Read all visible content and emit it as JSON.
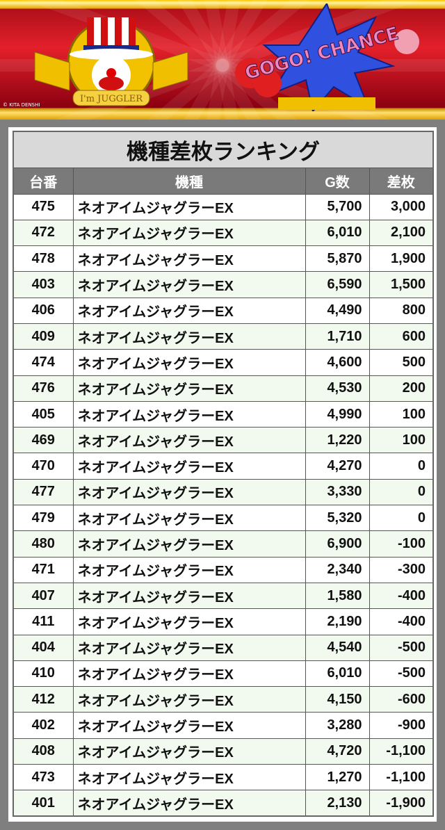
{
  "banner": {
    "copyright": "© KITA DENSHI",
    "logo_left_text": "I'm JUGGLER",
    "logo_right_text": "GOGO! CHANCE",
    "colors": {
      "red": "#e3202a",
      "gold": "#f7c600"
    }
  },
  "table": {
    "title": "機種差枚ランキング",
    "headers": [
      "台番",
      "機種",
      "G数",
      "差枚"
    ],
    "rows": [
      [
        "475",
        "ネオアイムジャグラーEX",
        "5,700",
        "3,000"
      ],
      [
        "472",
        "ネオアイムジャグラーEX",
        "6,010",
        "2,100"
      ],
      [
        "478",
        "ネオアイムジャグラーEX",
        "5,870",
        "1,900"
      ],
      [
        "403",
        "ネオアイムジャグラーEX",
        "6,590",
        "1,500"
      ],
      [
        "406",
        "ネオアイムジャグラーEX",
        "4,490",
        "800"
      ],
      [
        "409",
        "ネオアイムジャグラーEX",
        "1,710",
        "600"
      ],
      [
        "474",
        "ネオアイムジャグラーEX",
        "4,600",
        "500"
      ],
      [
        "476",
        "ネオアイムジャグラーEX",
        "4,530",
        "200"
      ],
      [
        "405",
        "ネオアイムジャグラーEX",
        "4,990",
        "100"
      ],
      [
        "469",
        "ネオアイムジャグラーEX",
        "1,220",
        "100"
      ],
      [
        "470",
        "ネオアイムジャグラーEX",
        "4,270",
        "0"
      ],
      [
        "477",
        "ネオアイムジャグラーEX",
        "3,330",
        "0"
      ],
      [
        "479",
        "ネオアイムジャグラーEX",
        "5,320",
        "0"
      ],
      [
        "480",
        "ネオアイムジャグラーEX",
        "6,900",
        "-100"
      ],
      [
        "471",
        "ネオアイムジャグラーEX",
        "2,340",
        "-300"
      ],
      [
        "407",
        "ネオアイムジャグラーEX",
        "1,580",
        "-400"
      ],
      [
        "411",
        "ネオアイムジャグラーEX",
        "2,190",
        "-400"
      ],
      [
        "404",
        "ネオアイムジャグラーEX",
        "4,540",
        "-500"
      ],
      [
        "410",
        "ネオアイムジャグラーEX",
        "6,010",
        "-500"
      ],
      [
        "412",
        "ネオアイムジャグラーEX",
        "4,150",
        "-600"
      ],
      [
        "402",
        "ネオアイムジャグラーEX",
        "3,280",
        "-900"
      ],
      [
        "408",
        "ネオアイムジャグラーEX",
        "4,720",
        "-1,100"
      ],
      [
        "473",
        "ネオアイムジャグラーEX",
        "1,270",
        "-1,100"
      ],
      [
        "401",
        "ネオアイムジャグラーEX",
        "2,130",
        "-1,900"
      ]
    ]
  }
}
